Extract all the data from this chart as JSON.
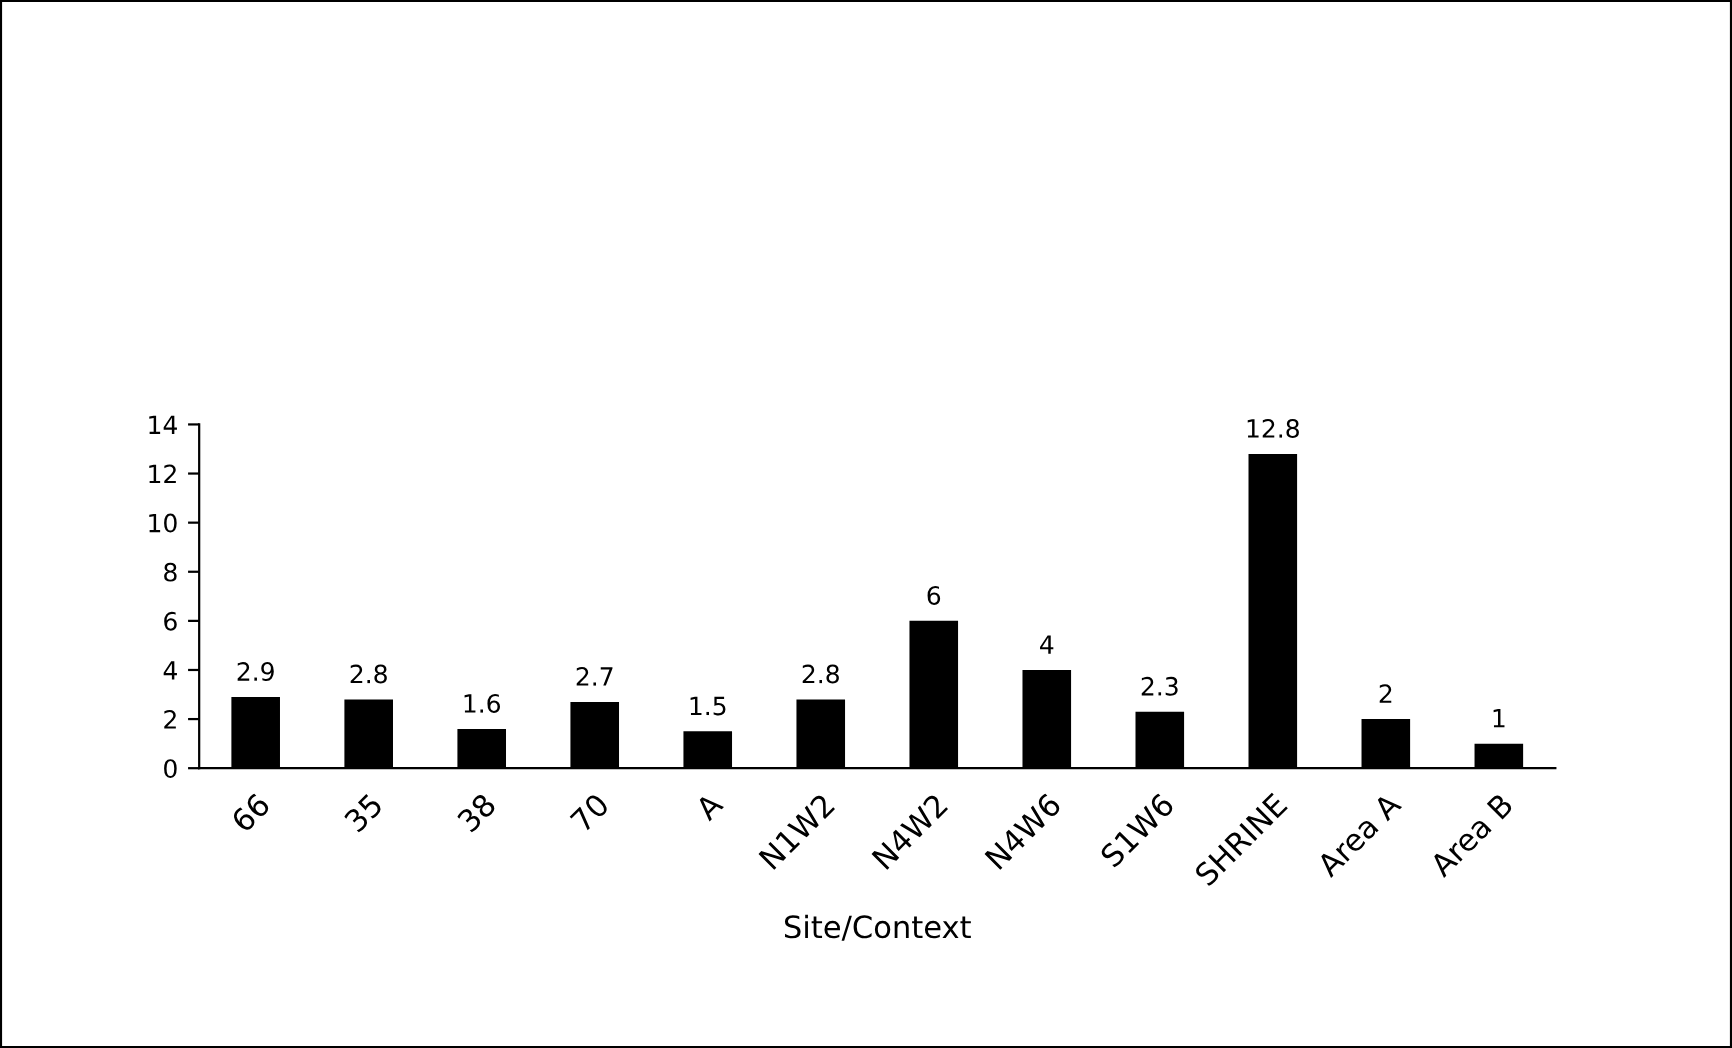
{
  "chart_data": {
    "type": "bar",
    "xlabel": "Site/Context",
    "categories": [
      "66",
      "35",
      "38",
      "70",
      "A",
      "N1W2",
      "N4W2",
      "N4W6",
      "S1W6",
      "SHRINE",
      "Area A",
      "Area B"
    ],
    "values": [
      2.9,
      2.8,
      1.6,
      2.7,
      1.5,
      2.8,
      6,
      4,
      2.3,
      12.8,
      2,
      1
    ],
    "color": "#000000",
    "ylim": [
      0,
      14
    ],
    "yticks": [
      0,
      2,
      4,
      6,
      8,
      10,
      12,
      14
    ],
    "data_labels": true,
    "grid": false,
    "legend": false
  }
}
